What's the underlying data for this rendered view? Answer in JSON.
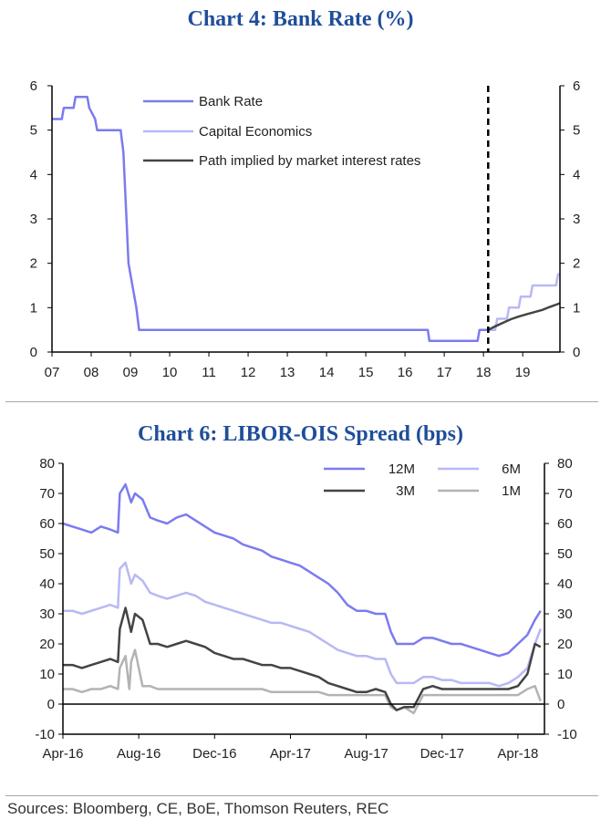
{
  "titles": {
    "chart4": "Chart 4: Bank Rate (%)",
    "chart6": "Chart 6: LIBOR-OIS Spread (bps)"
  },
  "source": "Sources: Bloomberg, CE, BoE, Thomson Reuters, REC",
  "colors": {
    "bank_rate": "#7b7bf0",
    "capital_economics": "#b8b8f5",
    "market_path": "#444444",
    "m12": "#7b7bf0",
    "m6": "#b8b8f5",
    "m3": "#444444",
    "m1": "#b3b3b3",
    "title": "#1f4e9a"
  },
  "chart_data": [
    {
      "type": "line",
      "title": "Chart 4: Bank Rate (%)",
      "xlabel": "",
      "ylabel": "",
      "xlim": [
        2007.0,
        2019.95
      ],
      "ylim": [
        0,
        6
      ],
      "y_ticks": [
        0,
        1,
        2,
        3,
        4,
        5,
        6
      ],
      "x_ticks": [
        {
          "value": 2007.0,
          "label": "07"
        },
        {
          "value": 2008.0,
          "label": "08"
        },
        {
          "value": 2009.0,
          "label": "09"
        },
        {
          "value": 2010.0,
          "label": "10"
        },
        {
          "value": 2011.0,
          "label": "11"
        },
        {
          "value": 2012.0,
          "label": "12"
        },
        {
          "value": 2013.0,
          "label": "13"
        },
        {
          "value": 2014.0,
          "label": "14"
        },
        {
          "value": 2015.0,
          "label": "15"
        },
        {
          "value": 2016.0,
          "label": "16"
        },
        {
          "value": 2017.0,
          "label": "17"
        },
        {
          "value": 2018.0,
          "label": "18"
        },
        {
          "value": 2019.0,
          "label": "19"
        }
      ],
      "forecast_start": 2018.12,
      "legend_position": "top-left",
      "series": [
        {
          "name": "Bank Rate",
          "color_key": "bank_rate",
          "x": [
            2007.0,
            2007.25,
            2007.3,
            2007.55,
            2007.6,
            2007.9,
            2007.95,
            2008.1,
            2008.15,
            2008.75,
            2008.82,
            2008.9,
            2008.95,
            2009.05,
            2009.15,
            2009.22,
            2016.58,
            2016.62,
            2017.85,
            2017.9,
            2018.12
          ],
          "y": [
            5.25,
            5.25,
            5.5,
            5.5,
            5.75,
            5.75,
            5.5,
            5.25,
            5.0,
            5.0,
            4.5,
            3.0,
            2.0,
            1.5,
            1.0,
            0.5,
            0.5,
            0.25,
            0.25,
            0.5,
            0.5
          ]
        },
        {
          "name": "Capital Economics",
          "color_key": "capital_economics",
          "x": [
            2018.12,
            2018.3,
            2018.35,
            2018.6,
            2018.65,
            2018.9,
            2018.95,
            2019.2,
            2019.25,
            2019.55,
            2019.6,
            2019.85,
            2019.9,
            2019.95
          ],
          "y": [
            0.5,
            0.5,
            0.75,
            0.75,
            1.0,
            1.0,
            1.25,
            1.25,
            1.5,
            1.5,
            1.5,
            1.5,
            1.75,
            1.75
          ]
        },
        {
          "name": "Path implied by market interest rates",
          "color_key": "market_path",
          "x": [
            2018.12,
            2018.3,
            2018.5,
            2018.7,
            2018.9,
            2019.1,
            2019.3,
            2019.5,
            2019.7,
            2019.95
          ],
          "y": [
            0.5,
            0.58,
            0.66,
            0.74,
            0.8,
            0.85,
            0.9,
            0.95,
            1.02,
            1.1
          ]
        }
      ]
    },
    {
      "type": "line",
      "title": "Chart 6: LIBOR-OIS Spread (bps)",
      "xlabel": "",
      "ylabel": "",
      "xlim": [
        0,
        25.4
      ],
      "x_unit": "months since Apr-16",
      "ylim": [
        -10,
        80
      ],
      "y_ticks": [
        -10,
        0,
        10,
        20,
        30,
        40,
        50,
        60,
        70,
        80
      ],
      "x_ticks": [
        {
          "value": 0,
          "label": "Apr-16"
        },
        {
          "value": 4,
          "label": "Aug-16"
        },
        {
          "value": 8,
          "label": "Dec-16"
        },
        {
          "value": 12,
          "label": "Apr-17"
        },
        {
          "value": 16,
          "label": "Aug-17"
        },
        {
          "value": 20,
          "label": "Dec-17"
        },
        {
          "value": 24,
          "label": "Apr-18"
        }
      ],
      "legend_position": "top-right",
      "series": [
        {
          "name": "12M",
          "color_key": "m12",
          "x": [
            0,
            0.5,
            1,
            1.5,
            2,
            2.5,
            2.9,
            3.0,
            3.3,
            3.6,
            3.8,
            4.2,
            4.6,
            5.0,
            5.5,
            6,
            6.5,
            7,
            7.5,
            8,
            8.5,
            9,
            9.5,
            10,
            10.5,
            11,
            11.5,
            12,
            12.5,
            13,
            13.5,
            14,
            14.5,
            15,
            15.5,
            16,
            16.5,
            17,
            17.3,
            17.6,
            18,
            18.5,
            19,
            19.5,
            20,
            20.5,
            21,
            21.5,
            22,
            22.5,
            23,
            23.5,
            24,
            24.5,
            24.9,
            25.2
          ],
          "y": [
            60,
            59,
            58,
            57,
            59,
            58,
            57,
            70,
            73,
            67,
            70,
            68,
            62,
            61,
            60,
            62,
            63,
            61,
            59,
            57,
            56,
            55,
            53,
            52,
            51,
            49,
            48,
            47,
            46,
            44,
            42,
            40,
            37,
            33,
            31,
            31,
            30,
            30,
            24,
            20,
            20,
            20,
            22,
            22,
            21,
            20,
            20,
            19,
            18,
            17,
            16,
            17,
            20,
            23,
            28,
            31
          ]
        },
        {
          "name": "6M",
          "color_key": "m6",
          "x": [
            0,
            0.5,
            1,
            1.5,
            2,
            2.5,
            2.9,
            3.0,
            3.3,
            3.6,
            3.8,
            4.2,
            4.6,
            5.0,
            5.5,
            6,
            6.5,
            7,
            7.5,
            8,
            8.5,
            9,
            9.5,
            10,
            10.5,
            11,
            11.5,
            12,
            12.5,
            13,
            13.5,
            14,
            14.5,
            15,
            15.5,
            16,
            16.5,
            17,
            17.3,
            17.6,
            18,
            18.5,
            19,
            19.5,
            20,
            20.5,
            21,
            21.5,
            22,
            22.5,
            23,
            23.5,
            24,
            24.5,
            24.9,
            25.2
          ],
          "y": [
            31,
            31,
            30,
            31,
            32,
            33,
            32,
            45,
            47,
            40,
            43,
            41,
            37,
            36,
            35,
            36,
            37,
            36,
            34,
            33,
            32,
            31,
            30,
            29,
            28,
            27,
            27,
            26,
            25,
            24,
            22,
            20,
            18,
            17,
            16,
            16,
            15,
            15,
            10,
            7,
            7,
            7,
            9,
            9,
            8,
            8,
            7,
            7,
            7,
            7,
            6,
            7,
            9,
            12,
            20,
            25
          ]
        },
        {
          "name": "3M",
          "color_key": "m3",
          "x": [
            0,
            0.5,
            1,
            1.5,
            2,
            2.5,
            2.9,
            3.0,
            3.3,
            3.6,
            3.8,
            4.2,
            4.6,
            5.0,
            5.5,
            6,
            6.5,
            7,
            7.5,
            8,
            8.5,
            9,
            9.5,
            10,
            10.5,
            11,
            11.5,
            12,
            12.5,
            13,
            13.5,
            14,
            14.5,
            15,
            15.5,
            16,
            16.5,
            17,
            17.3,
            17.6,
            18,
            18.5,
            19,
            19.5,
            20,
            20.5,
            21,
            21.5,
            22,
            22.5,
            23,
            23.5,
            24,
            24.5,
            24.9,
            25.2
          ],
          "y": [
            13,
            13,
            12,
            13,
            14,
            15,
            14,
            25,
            32,
            24,
            30,
            28,
            20,
            20,
            19,
            20,
            21,
            20,
            19,
            17,
            16,
            15,
            15,
            14,
            13,
            13,
            12,
            12,
            11,
            10,
            9,
            7,
            6,
            5,
            4,
            4,
            5,
            4,
            0,
            -2,
            -1,
            -1,
            5,
            6,
            5,
            5,
            5,
            5,
            5,
            5,
            5,
            5,
            6,
            10,
            20,
            19
          ]
        },
        {
          "name": "1M",
          "color_key": "m1",
          "x": [
            0,
            0.5,
            1,
            1.5,
            2,
            2.5,
            2.9,
            3.0,
            3.3,
            3.5,
            3.6,
            3.8,
            4.2,
            4.6,
            5.0,
            5.5,
            6,
            6.5,
            7,
            7.5,
            8,
            8.5,
            9,
            9.5,
            10,
            10.5,
            11,
            11.5,
            12,
            12.5,
            13,
            13.5,
            14,
            14.5,
            15,
            15.5,
            16,
            16.5,
            17,
            17.3,
            17.6,
            18,
            18.5,
            19,
            19.5,
            20,
            20.5,
            21,
            21.5,
            22,
            22.5,
            23,
            23.5,
            24,
            24.5,
            24.9,
            25.2
          ],
          "y": [
            5,
            5,
            4,
            5,
            5,
            6,
            5,
            12,
            16,
            5,
            14,
            18,
            6,
            6,
            5,
            5,
            5,
            5,
            5,
            5,
            5,
            5,
            5,
            5,
            5,
            5,
            4,
            4,
            4,
            4,
            4,
            4,
            3,
            3,
            3,
            3,
            3,
            3,
            3,
            -1,
            -2,
            -1,
            -3,
            3,
            3,
            3,
            3,
            3,
            3,
            3,
            3,
            3,
            3,
            3,
            5,
            6,
            1
          ]
        }
      ]
    }
  ]
}
